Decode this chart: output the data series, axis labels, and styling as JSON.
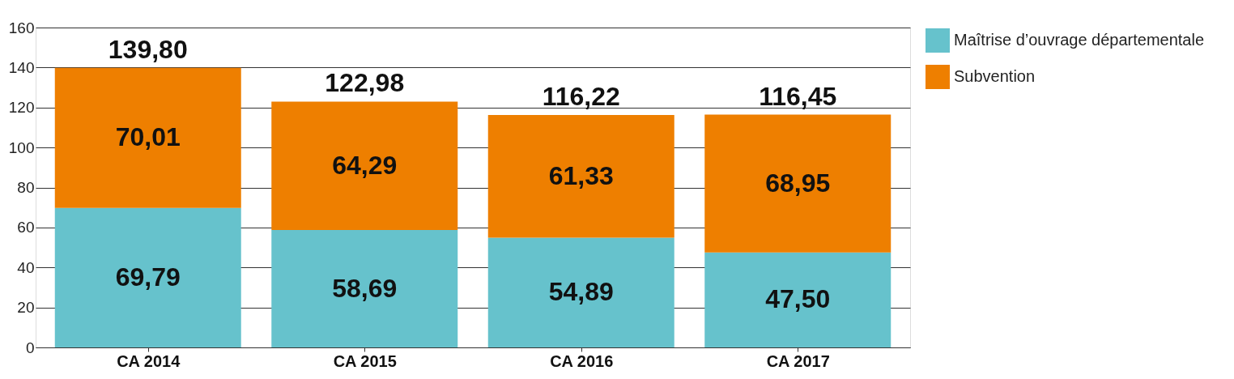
{
  "chart_data": {
    "type": "bar",
    "stacked": true,
    "categories": [
      "CA 2014",
      "CA 2015",
      "CA 2016",
      "CA 2017"
    ],
    "series": [
      {
        "name": "Maîtrise d’ouvrage départementale",
        "color": "#66c2cc",
        "values": [
          69.79,
          58.69,
          54.89,
          47.5
        ],
        "value_labels": [
          "69,79",
          "58,69",
          "54,89",
          "47,50"
        ]
      },
      {
        "name": "Subvention",
        "color": "#ee7f00",
        "values": [
          70.01,
          64.29,
          61.33,
          68.95
        ],
        "value_labels": [
          "70,01",
          "64,29",
          "61,33",
          "68,95"
        ]
      }
    ],
    "totals": [
      "139,80",
      "122,98",
      "116,22",
      "116,45"
    ],
    "ylim": [
      0,
      160
    ],
    "yticks": [
      0,
      20,
      40,
      60,
      80,
      100,
      120,
      140,
      160
    ],
    "grid": "y",
    "legend": "right"
  }
}
